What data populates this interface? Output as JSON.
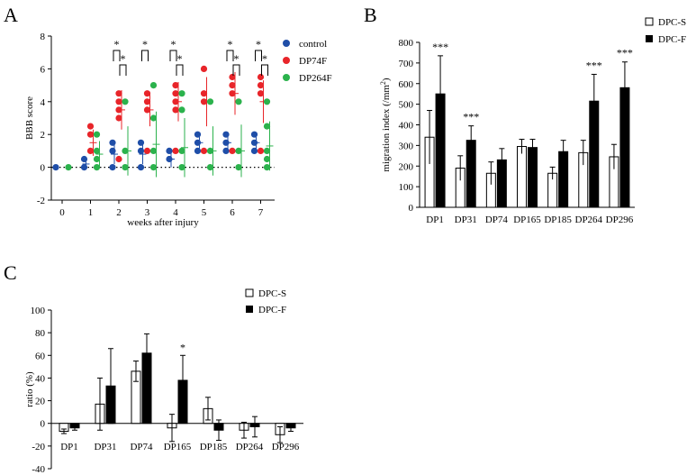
{
  "colors": {
    "control": "#1f4ea8",
    "dp74f": "#e8252a",
    "dp264f": "#2bb24c",
    "black": "#000000",
    "white": "#ffffff"
  },
  "chart_data": [
    {
      "panel": "A",
      "type": "scatter",
      "title": "",
      "xlabel": "weeks after injury",
      "ylabel": "BBB score",
      "xlim": [
        -0.5,
        7.5
      ],
      "ylim": [
        -2,
        8
      ],
      "xticks": [
        "0",
        "1",
        "2",
        "3",
        "4",
        "5",
        "6",
        "7"
      ],
      "yticks": [
        "-2",
        "0",
        "2",
        "4",
        "6",
        "8"
      ],
      "legend": [
        "control",
        "DP74F",
        "DP264F"
      ],
      "series": [
        {
          "name": "control",
          "points": [
            [
              0,
              0
            ],
            [
              1,
              0.5
            ],
            [
              1,
              0
            ],
            [
              2,
              1.5
            ],
            [
              2,
              1
            ],
            [
              2,
              0
            ],
            [
              3,
              1.5
            ],
            [
              3,
              1
            ],
            [
              3,
              0
            ],
            [
              4,
              1
            ],
            [
              4,
              0.5
            ],
            [
              5,
              2
            ],
            [
              5,
              1.5
            ],
            [
              5,
              1
            ],
            [
              6,
              2
            ],
            [
              6,
              1.5
            ],
            [
              6,
              1
            ],
            [
              7,
              2
            ],
            [
              7,
              1.5
            ],
            [
              7,
              1
            ]
          ],
          "mean": [
            0,
            0.2,
            0.8,
            0.8,
            0.5,
            1.5,
            1.5,
            1.5
          ],
          "err": [
            0,
            0.3,
            0.6,
            0.6,
            0.5,
            0.4,
            0.4,
            0.4
          ]
        },
        {
          "name": "DP74F",
          "points": [
            [
              1,
              2.5
            ],
            [
              1,
              2
            ],
            [
              1,
              1
            ],
            [
              2,
              4.5
            ],
            [
              2,
              4
            ],
            [
              2,
              3.5
            ],
            [
              2,
              3
            ],
            [
              2,
              0.5
            ],
            [
              3,
              4.5
            ],
            [
              3,
              4
            ],
            [
              3,
              3.5
            ],
            [
              3,
              1
            ],
            [
              4,
              5
            ],
            [
              4,
              4.5
            ],
            [
              4,
              4
            ],
            [
              4,
              3.5
            ],
            [
              4,
              1
            ],
            [
              5,
              6
            ],
            [
              5,
              4.5
            ],
            [
              5,
              4
            ],
            [
              5,
              1
            ],
            [
              6,
              5.5
            ],
            [
              6,
              5
            ],
            [
              6,
              4.5
            ],
            [
              6,
              1
            ],
            [
              7,
              5.5
            ],
            [
              7,
              5
            ],
            [
              7,
              4.5
            ],
            [
              7,
              1
            ]
          ],
          "mean": [
            0,
            1.5,
            3.5,
            3.5,
            4,
            4,
            4.5,
            4
          ],
          "err": [
            0,
            0.8,
            1.2,
            1.0,
            1.2,
            1.5,
            1.3,
            1.3
          ]
        },
        {
          "name": "DP264F",
          "points": [
            [
              0,
              0
            ],
            [
              1,
              2
            ],
            [
              1,
              1
            ],
            [
              1,
              0.5
            ],
            [
              1,
              0
            ],
            [
              2,
              4
            ],
            [
              2,
              1
            ],
            [
              2,
              0
            ],
            [
              3,
              5
            ],
            [
              3,
              3
            ],
            [
              3,
              1
            ],
            [
              3,
              0
            ],
            [
              4,
              4.5
            ],
            [
              4,
              3.5
            ],
            [
              4,
              1
            ],
            [
              4,
              0
            ],
            [
              5,
              4
            ],
            [
              5,
              1
            ],
            [
              5,
              0
            ],
            [
              6,
              4
            ],
            [
              6,
              1
            ],
            [
              6,
              0
            ],
            [
              7,
              4
            ],
            [
              7,
              2.5
            ],
            [
              7,
              1
            ],
            [
              7,
              0.5
            ],
            [
              7,
              0
            ]
          ],
          "mean": [
            0,
            0.8,
            1.0,
            1.4,
            1.2,
            1.0,
            1.0,
            1.3
          ],
          "err": [
            0,
            0.8,
            1.5,
            2.0,
            1.8,
            1.5,
            1.6,
            1.5
          ]
        }
      ],
      "significance": [
        {
          "week": 2,
          "label": "*",
          "pair": "control-DP74F"
        },
        {
          "week": 2,
          "label": "*",
          "pair": "DP74F-DP264F"
        },
        {
          "week": 3,
          "label": "*",
          "pair": "control-DP74F"
        },
        {
          "week": 4,
          "label": "*",
          "pair": "control-DP74F"
        },
        {
          "week": 4,
          "label": "*",
          "pair": "DP74F-DP264F"
        },
        {
          "week": 6,
          "label": "*",
          "pair": "control-DP74F"
        },
        {
          "week": 6,
          "label": "*",
          "pair": "DP74F-DP264F"
        },
        {
          "week": 7,
          "label": "*",
          "pair": "control-DP74F"
        },
        {
          "week": 7,
          "label": "*",
          "pair": "DP74F-DP264F"
        }
      ]
    },
    {
      "panel": "B",
      "type": "bar",
      "title": "",
      "xlabel": "",
      "ylabel": "migration index (/mm",
      "ylabel_sup": "2",
      "ylabel_end": ")",
      "ylim": [
        0,
        800
      ],
      "yticks": [
        "0",
        "100",
        "200",
        "300",
        "400",
        "500",
        "600",
        "700",
        "800"
      ],
      "categories": [
        "DP1",
        "DP31",
        "DP74",
        "DP165",
        "DP185",
        "DP264",
        "DP296"
      ],
      "legend": [
        "DPC-S",
        "DPC-F"
      ],
      "series": [
        {
          "name": "DPC-S",
          "values": [
            340,
            190,
            165,
            295,
            165,
            265,
            245
          ],
          "err": [
            130,
            60,
            55,
            35,
            30,
            60,
            60
          ]
        },
        {
          "name": "DPC-F",
          "values": [
            550,
            325,
            230,
            290,
            270,
            515,
            580
          ],
          "err": [
            185,
            70,
            55,
            40,
            55,
            130,
            125
          ]
        }
      ],
      "significance": [
        "***",
        "***",
        "",
        "",
        "",
        "***",
        "***"
      ]
    },
    {
      "panel": "C",
      "type": "bar",
      "title": "",
      "xlabel": "",
      "ylabel": "ratio (%)",
      "ylim": [
        -40,
        100
      ],
      "yticks": [
        "-40",
        "-20",
        "0",
        "20",
        "40",
        "60",
        "80",
        "100"
      ],
      "categories": [
        "DP1",
        "DP31",
        "DP74",
        "DP165",
        "DP185",
        "DP264",
        "DP296"
      ],
      "legend": [
        "DPC-S",
        "DPC-F"
      ],
      "series": [
        {
          "name": "DPC-S",
          "values": [
            -7,
            17,
            46,
            -4,
            13,
            -6,
            -10
          ],
          "err": [
            2,
            23,
            9,
            12,
            10,
            7,
            7
          ]
        },
        {
          "name": "DPC-F",
          "values": [
            -4,
            33,
            62,
            38,
            -6,
            -3,
            -4
          ],
          "err": [
            2,
            33,
            17,
            22,
            9,
            9,
            3
          ]
        }
      ],
      "significance": [
        "",
        "",
        "",
        "*",
        "",
        "",
        ""
      ]
    }
  ],
  "panel_labels": [
    "A",
    "B",
    "C"
  ]
}
